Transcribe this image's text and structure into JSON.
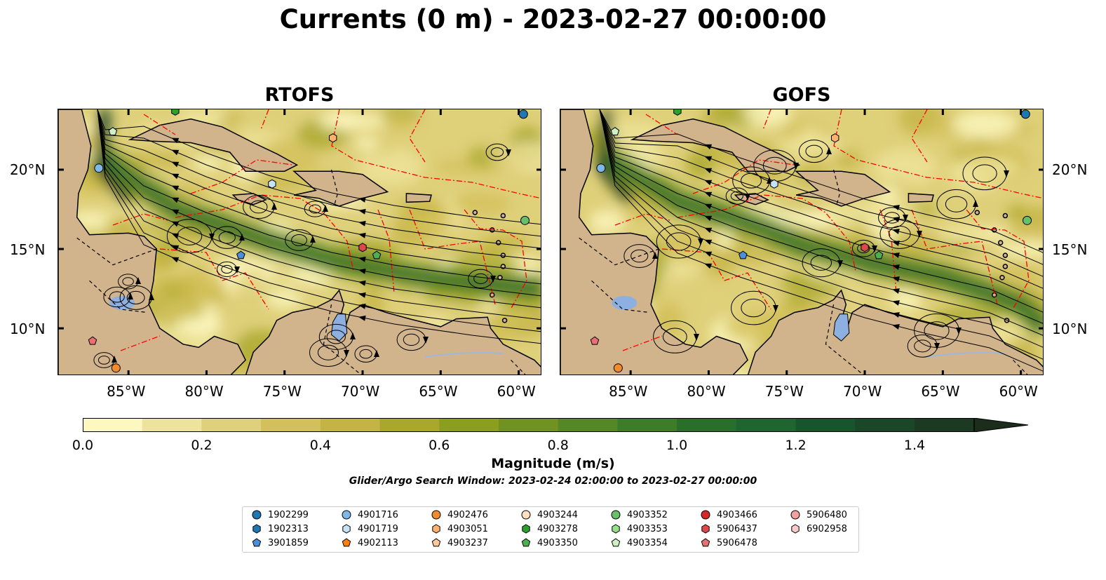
{
  "title": "Currents (0 m) - 2023-02-27 00:00:00",
  "panels": [
    {
      "title": "RTOFS"
    },
    {
      "title": "GOFS"
    }
  ],
  "lon_ticks": [
    "85°W",
    "80°W",
    "75°W",
    "70°W",
    "65°W",
    "60°W"
  ],
  "lat_ticks": [
    "20°N",
    "15°N",
    "10°N"
  ],
  "map_extent": {
    "lon": [
      -89.5,
      -58.5
    ],
    "lat": [
      7.0,
      23.8
    ]
  },
  "colorbar": {
    "label": "Magnitude (m/s)",
    "tick_labels": [
      "0.0",
      "0.2",
      "0.4",
      "0.6",
      "0.8",
      "1.0",
      "1.2",
      "1.4"
    ],
    "range": [
      0.0,
      1.5
    ],
    "extend": "max",
    "colors": [
      "#fdf7c0",
      "#ede39a",
      "#dfd07a",
      "#d3c05a",
      "#c4b444",
      "#a9a82c",
      "#8c9e1e",
      "#6f9220",
      "#558824",
      "#3e7c28",
      "#2a6e2c",
      "#1f6530",
      "#18552c",
      "#1a4727",
      "#1c3a22",
      "#1c2d1c"
    ]
  },
  "window_text": "Glider/Argo Search Window: 2023-02-24 02:00:00 to 2023-02-27 00:00:00",
  "colors": {
    "land": "#d2b48c",
    "lake": "#8db0e0",
    "boundary": "#ff0000",
    "streamline": "#000000"
  },
  "legend": [
    {
      "label": "1902299",
      "marker": "circle",
      "color": "#1f77b4"
    },
    {
      "label": "1902313",
      "marker": "hexagon",
      "color": "#1f77b4"
    },
    {
      "label": "3901859",
      "marker": "pentagon",
      "color": "#4a90d9"
    },
    {
      "label": "4901716",
      "marker": "circle",
      "color": "#7fb8e8"
    },
    {
      "label": "4901719",
      "marker": "hexagon",
      "color": "#c6e2f7"
    },
    {
      "label": "4902113",
      "marker": "pentagon",
      "color": "#ff7f0e"
    },
    {
      "label": "4902476",
      "marker": "circle",
      "color": "#f28a2e"
    },
    {
      "label": "4903051",
      "marker": "hexagon",
      "color": "#ffb170"
    },
    {
      "label": "4903237",
      "marker": "pentagon",
      "color": "#ffc99a"
    },
    {
      "label": "4903244",
      "marker": "circle",
      "color": "#fde0c2"
    },
    {
      "label": "4903278",
      "marker": "hexagon",
      "color": "#2ca02c"
    },
    {
      "label": "4903350",
      "marker": "pentagon",
      "color": "#4caf50"
    },
    {
      "label": "4903352",
      "marker": "circle",
      "color": "#66c06a"
    },
    {
      "label": "4903353",
      "marker": "hexagon",
      "color": "#98df8a"
    },
    {
      "label": "4903354",
      "marker": "pentagon",
      "color": "#cdf1c4"
    },
    {
      "label": "4903466",
      "marker": "circle",
      "color": "#d62728"
    },
    {
      "label": "5906437",
      "marker": "hexagon",
      "color": "#e04848"
    },
    {
      "label": "5906478",
      "marker": "pentagon",
      "color": "#e87070"
    },
    {
      "label": "5906480",
      "marker": "circle",
      "color": "#f3a0a0"
    },
    {
      "label": "6902958",
      "marker": "hexagon",
      "color": "#fbc9c9"
    }
  ],
  "floats": [
    {
      "id": "1902299",
      "lon": -59.7,
      "lat": 23.5
    },
    {
      "id": "4901716",
      "lon": -86.9,
      "lat": 20.1
    },
    {
      "id": "4903354",
      "lon": -86.0,
      "lat": 22.4
    },
    {
      "id": "4903278",
      "lon": -82.0,
      "lat": 23.7
    },
    {
      "id": "4903051",
      "lon": -71.9,
      "lat": 22.0
    },
    {
      "id": "4901719",
      "lon": -75.8,
      "lat": 19.1
    },
    {
      "id": "3901859",
      "lon": -77.8,
      "lat": 14.6
    },
    {
      "id": "5906437",
      "lon": -70.0,
      "lat": 15.1
    },
    {
      "id": "4903350",
      "lon": -69.1,
      "lat": 14.6
    },
    {
      "id": "4903352",
      "lon": -59.6,
      "lat": 16.8
    },
    {
      "id": "5906478",
      "lon": -87.3,
      "lat": 9.2
    },
    {
      "id": "4902476",
      "lon": -85.8,
      "lat": 7.5
    }
  ]
}
